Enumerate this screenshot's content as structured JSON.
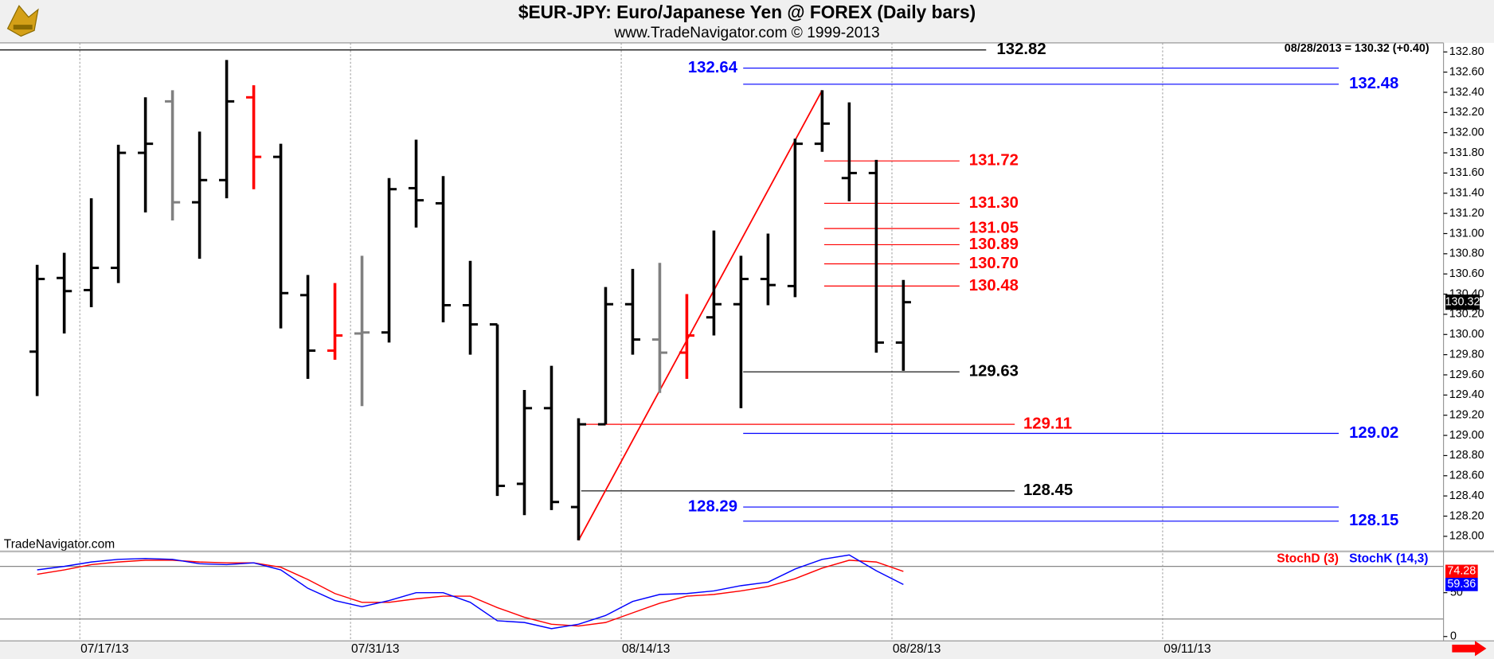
{
  "chart_data": [
    {
      "type": "ohlc",
      "title": "$EUR-JPY:  Euro/Japanese Yen @ FOREX  (Daily bars)",
      "subtitle": "www.TradeNavigator.com © 1999-2013",
      "quote": "08/28/2013 = 130.32 (+0.40)",
      "watermark": "TradeNavigator.com",
      "x": [
        "07/15/13",
        "07/16/13",
        "07/17/13",
        "07/18/13",
        "07/19/13",
        "07/22/13",
        "07/23/13",
        "07/24/13",
        "07/25/13",
        "07/26/13",
        "07/29/13",
        "07/30/13",
        "07/31/13",
        "08/01/13",
        "08/02/13",
        "08/05/13",
        "08/06/13",
        "08/07/13",
        "08/08/13",
        "08/09/13",
        "08/12/13",
        "08/13/13",
        "08/14/13",
        "08/15/13",
        "08/16/13",
        "08/19/13",
        "08/20/13",
        "08/21/13",
        "08/22/13",
        "08/23/13",
        "08/26/13",
        "08/27/13",
        "08/28/13"
      ],
      "open": [
        129.83,
        130.56,
        130.44,
        130.66,
        131.8,
        132.31,
        131.31,
        131.53,
        132.35,
        131.76,
        130.39,
        129.84,
        130.01,
        130.02,
        131.45,
        131.3,
        130.29,
        130.1,
        128.52,
        129.27,
        128.29,
        129.11,
        130.3,
        129.95,
        129.82,
        130.17,
        130.3,
        130.55,
        130.48,
        131.89,
        131.55,
        131.6,
        129.92
      ],
      "high": [
        130.69,
        130.81,
        131.35,
        131.88,
        132.35,
        132.42,
        132.01,
        132.72,
        132.47,
        131.89,
        130.59,
        130.51,
        130.78,
        131.55,
        131.93,
        131.57,
        130.73,
        130.1,
        129.45,
        129.69,
        129.17,
        130.47,
        130.65,
        130.71,
        130.4,
        131.03,
        130.78,
        131.0,
        131.94,
        132.42,
        132.3,
        131.73,
        130.54
      ],
      "low": [
        129.39,
        130.01,
        130.27,
        130.51,
        131.21,
        131.13,
        130.75,
        131.35,
        131.44,
        130.06,
        129.56,
        129.75,
        129.29,
        129.92,
        131.06,
        130.12,
        129.8,
        128.4,
        128.21,
        128.26,
        127.96,
        129.11,
        129.8,
        129.42,
        129.56,
        129.99,
        129.27,
        130.29,
        130.37,
        131.81,
        131.32,
        129.82,
        129.64
      ],
      "close": [
        130.55,
        130.43,
        130.66,
        131.8,
        131.89,
        131.31,
        131.53,
        132.31,
        131.76,
        130.41,
        129.84,
        129.99,
        130.02,
        131.44,
        131.33,
        130.29,
        130.1,
        128.5,
        129.27,
        128.34,
        129.11,
        130.3,
        129.95,
        129.82,
        129.99,
        130.3,
        130.55,
        130.49,
        131.89,
        132.09,
        131.6,
        129.92,
        130.32
      ],
      "colors": [
        "#000000",
        "#000000",
        "#000000",
        "#000000",
        "#000000",
        "#808080",
        "#000000",
        "#000000",
        "#ff0000",
        "#000000",
        "#000000",
        "#ff0000",
        "#808080",
        "#000000",
        "#000000",
        "#000000",
        "#000000",
        "#000000",
        "#000000",
        "#000000",
        "#000000",
        "#000000",
        "#000000",
        "#808080",
        "#ff0000",
        "#000000",
        "#000000",
        "#000000",
        "#000000",
        "#000000",
        "#000000",
        "#000000",
        "#000000"
      ],
      "ylim": [
        127.86,
        132.89
      ],
      "yticks": [
        {
          "value": 128,
          "label": "128.00"
        },
        {
          "value": 128.2,
          "label": "128.20"
        },
        {
          "value": 128.4,
          "label": "128.40"
        },
        {
          "value": 128.6,
          "label": "128.60"
        },
        {
          "value": 128.8,
          "label": "128.80"
        },
        {
          "value": 129,
          "label": "129.00"
        },
        {
          "value": 129.2,
          "label": "129.20"
        },
        {
          "value": 129.4,
          "label": "129.40"
        },
        {
          "value": 129.6,
          "label": "129.60"
        },
        {
          "value": 129.8,
          "label": "129.80"
        },
        {
          "value": 130,
          "label": "130.00"
        },
        {
          "value": 130.2,
          "label": "130.20"
        },
        {
          "value": 130.4,
          "label": "130.40"
        },
        {
          "value": 130.6,
          "label": "130.60"
        },
        {
          "value": 130.8,
          "label": "130.80"
        },
        {
          "value": 131,
          "label": "131.00"
        },
        {
          "value": 131.2,
          "label": "131.20"
        },
        {
          "value": 131.4,
          "label": "131.40"
        },
        {
          "value": 131.6,
          "label": "131.60"
        },
        {
          "value": 131.8,
          "label": "131.80"
        },
        {
          "value": 132,
          "label": "132.00"
        },
        {
          "value": 132.2,
          "label": "132.20"
        },
        {
          "value": 132.4,
          "label": "132.40"
        },
        {
          "value": 132.6,
          "label": "132.60"
        },
        {
          "value": 132.8,
          "label": "132.80"
        }
      ],
      "xticks": [
        "07/17/13",
        "07/31/13",
        "08/14/13",
        "08/28/13",
        "09/11/13"
      ],
      "levels": [
        {
          "value": 132.82,
          "color": "#000000"
        },
        {
          "value": 132.64,
          "color": "#0000ff"
        },
        {
          "value": 132.48,
          "color": "#0000ff"
        },
        {
          "value": 131.72,
          "color": "#ff0000"
        },
        {
          "value": 131.3,
          "label": "131.30",
          "color": "#ff0000"
        },
        {
          "value": 131.05,
          "color": "#ff0000"
        },
        {
          "value": 130.89,
          "color": "#ff0000"
        },
        {
          "value": 130.7,
          "label": "130.70",
          "color": "#ff0000"
        },
        {
          "value": 130.48,
          "color": "#ff0000"
        },
        {
          "value": 129.63,
          "color": "#000000"
        },
        {
          "value": 129.11,
          "color": "#ff0000"
        },
        {
          "value": 129.02,
          "color": "#0000ff"
        },
        {
          "value": 128.45,
          "color": "#000000"
        },
        {
          "value": 128.29,
          "color": "#0000ff"
        },
        {
          "value": 128.15,
          "color": "#0000ff"
        }
      ],
      "trendline": {
        "x": [
          "08/12/13",
          "08/23/13"
        ],
        "values": [
          127.96,
          132.42
        ],
        "color": "#ff0000"
      }
    },
    {
      "type": "line",
      "series": [
        {
          "name": "StochD (3)",
          "color": "#ff0000",
          "values": [
            71,
            76,
            82,
            85,
            87,
            87,
            85,
            84,
            84,
            79,
            65,
            49,
            39,
            39,
            43,
            46,
            46,
            33,
            22,
            14,
            12,
            16,
            27,
            38,
            46,
            48,
            52,
            57,
            66,
            78,
            87,
            85,
            74.28
          ]
        },
        {
          "name": "StochK (14,3)",
          "color": "#0000ff",
          "values": [
            76,
            80,
            85,
            88,
            89,
            88,
            83,
            82,
            84,
            76,
            55,
            41,
            34,
            41,
            50,
            50,
            39,
            18,
            16,
            9,
            14,
            24,
            40,
            48,
            49,
            52,
            58,
            62,
            77,
            88,
            93,
            75,
            59.36
          ]
        }
      ],
      "ylim": [
        -5,
        96
      ],
      "yticks": [
        0,
        50
      ],
      "reference_lines": [
        20,
        80
      ]
    }
  ]
}
